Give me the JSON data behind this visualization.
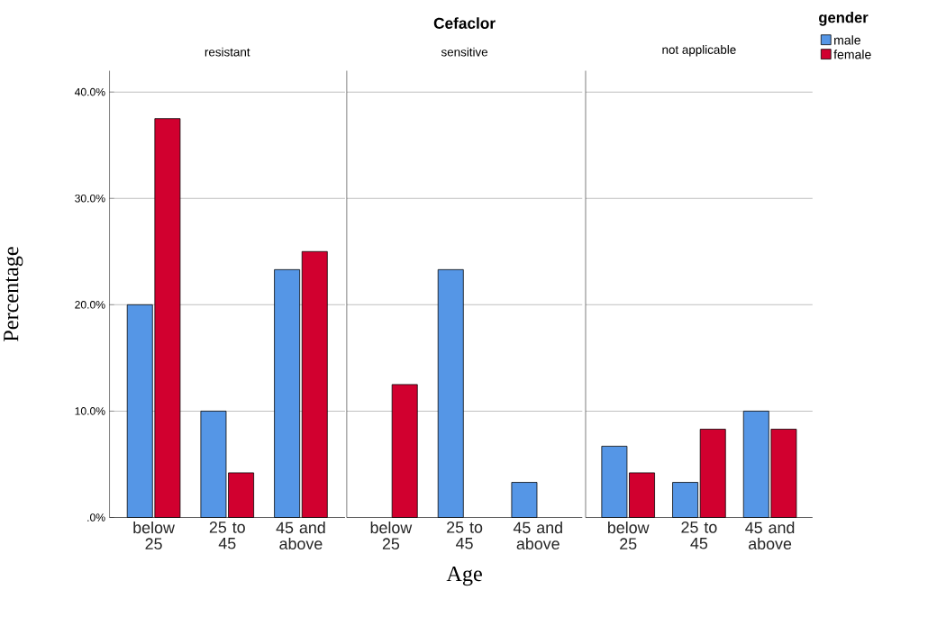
{
  "chart_data": [
    {
      "type": "bar",
      "subtitle": "resistant",
      "ylabel": "Percentage",
      "categories": [
        "below 25",
        "25 to 45",
        "45 and above"
      ],
      "series": [
        {
          "color": "#5596e6",
          "values": [
            20.0,
            10.0,
            23.3
          ]
        },
        {
          "color": "#d1002f",
          "values": [
            37.5,
            4.2,
            25.0
          ]
        }
      ],
      "ylim": [
        0,
        42
      ],
      "yticks": [
        {
          "value": 0,
          "label": ".0%"
        },
        {
          "value": 10,
          "label": "10.0%"
        },
        {
          "value": 20,
          "label": "20.0%"
        },
        {
          "value": 30,
          "label": "30.0%"
        },
        {
          "value": 40,
          "label": "40.0%"
        }
      ],
      "grid": "y"
    },
    {
      "type": "bar",
      "title": "Cefaclor",
      "subtitle": "sensitive",
      "xlabel": "Age",
      "categories": [
        "below 25",
        "25 to 45",
        "45 and above"
      ],
      "series": [
        {
          "color": "#5596e6",
          "values": [
            null,
            23.3,
            3.3
          ]
        },
        {
          "color": "#d1002f",
          "values": [
            12.5,
            null,
            null
          ]
        }
      ],
      "ylim": [
        0,
        42
      ],
      "yticks": [
        0,
        10,
        20,
        30,
        40
      ],
      "grid": "y",
      "tick_labels": "x"
    },
    {
      "type": "bar",
      "subtitle": "not applicable",
      "legend_title": "gender",
      "legend": "top right",
      "categories": [
        "below 25",
        "25 to 45",
        "45 and above"
      ],
      "series": [
        {
          "name": "male",
          "color": "#5596e6",
          "values": [
            6.7,
            3.3,
            10.0
          ]
        },
        {
          "name": "female",
          "color": "#d1002f",
          "values": [
            4.2,
            8.3,
            8.3
          ]
        }
      ],
      "ylim": [
        0,
        42
      ],
      "yticks": [
        0,
        10,
        20,
        30,
        40
      ],
      "grid": "y",
      "tick_labels": "x"
    }
  ]
}
